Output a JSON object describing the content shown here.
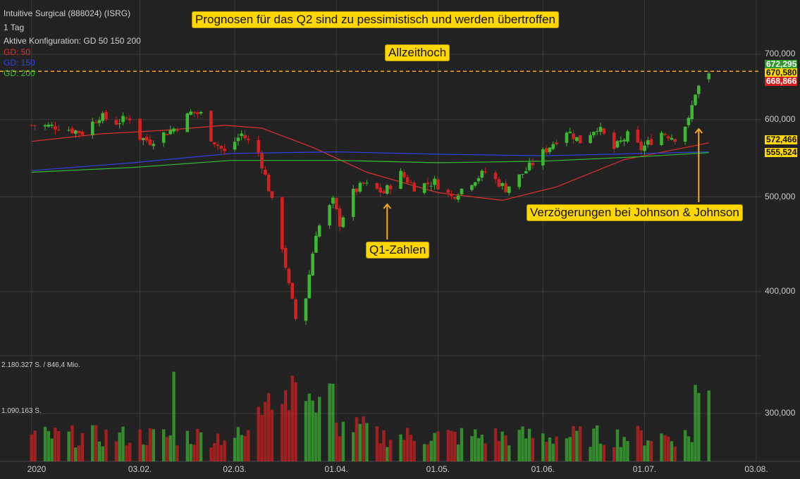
{
  "header": {
    "instrument": "Intuitive Surgical (888024) (ISRG)",
    "interval": "1 Tag",
    "config": "Aktive Konfiguration: GD 50 150 200",
    "legend": [
      {
        "label": "GD: 50",
        "color": "#e03030"
      },
      {
        "label": "GD: 150",
        "color": "#3040e0"
      },
      {
        "label": "GD: 200",
        "color": "#30c030"
      }
    ]
  },
  "annotations": {
    "headline": "Prognosen für das Q2 sind zu pessimistisch und werden übertroffen",
    "ath": "Allzeithoch",
    "q1": "Q1-Zahlen",
    "jnj": "Verzögerungen bei Johnson & Johnson"
  },
  "volume_labels": {
    "max": "2.180.327 S. / 846,4 Mio.",
    "mid": "1.090.163 S."
  },
  "price_badges": [
    {
      "value": "672,295",
      "bg": "#2a9a2a",
      "fg": "#ffffff",
      "level": 672.295
    },
    {
      "value": "670,580",
      "bg": "#ffd700",
      "fg": "#111111",
      "level": 670.58
    },
    {
      "value": "668,866",
      "bg": "#d62020",
      "fg": "#ffffff",
      "level": 668.866
    },
    {
      "value": "572,466",
      "bg": "#ffd700",
      "fg": "#111111",
      "level": 572.466
    },
    {
      "value": "555,524",
      "bg": "#ffd700",
      "fg": "#111111",
      "level": 555.524
    }
  ],
  "colors": {
    "up": "#3cb832",
    "down": "#d42020",
    "ath_line": "#f5a623",
    "arrow": "#f5a623"
  },
  "chart_data": {
    "type": "candlestick",
    "title": "Intuitive Surgical (888024) (ISRG)",
    "y_scale": "log",
    "y_ticks": [
      {
        "value": 700,
        "label": "700,000"
      },
      {
        "value": 600,
        "label": "600,000"
      },
      {
        "value": 500,
        "label": "500,000"
      },
      {
        "value": 400,
        "label": "400,000"
      },
      {
        "value": 300,
        "label": "300,000"
      }
    ],
    "x_ticks": [
      "2020",
      "03.02.",
      "02.03.",
      "01.04.",
      "01.05.",
      "01.06.",
      "01.07.",
      "03.08."
    ],
    "all_time_high": 672.295,
    "anchors": [
      {
        "date": "2020-01-02",
        "close": 592
      },
      {
        "date": "2020-01-10",
        "close": 590
      },
      {
        "date": "2020-01-17",
        "close": 582
      },
      {
        "date": "2020-01-22",
        "close": 605
      },
      {
        "date": "2020-01-27",
        "close": 596
      },
      {
        "date": "2020-01-31",
        "close": 603
      },
      {
        "date": "2020-02-03",
        "close": 575
      },
      {
        "date": "2020-02-06",
        "close": 570
      },
      {
        "date": "2020-02-14",
        "close": 590
      },
      {
        "date": "2020-02-18",
        "close": 610
      },
      {
        "date": "2020-02-21",
        "close": 608
      },
      {
        "date": "2020-02-24",
        "close": 575
      },
      {
        "date": "2020-02-28",
        "close": 555
      },
      {
        "date": "2020-03-04",
        "close": 580
      },
      {
        "date": "2020-03-09",
        "close": 555
      },
      {
        "date": "2020-03-12",
        "close": 510
      },
      {
        "date": "2020-03-16",
        "close": 445
      },
      {
        "date": "2020-03-18",
        "close": 405
      },
      {
        "date": "2020-03-20",
        "close": 375
      },
      {
        "date": "2020-03-23",
        "close": 395
      },
      {
        "date": "2020-03-26",
        "close": 460
      },
      {
        "date": "2020-03-31",
        "close": 495
      },
      {
        "date": "2020-04-02",
        "close": 470
      },
      {
        "date": "2020-04-06",
        "close": 505
      },
      {
        "date": "2020-04-09",
        "close": 515
      },
      {
        "date": "2020-04-15",
        "close": 505
      },
      {
        "date": "2020-04-20",
        "close": 528
      },
      {
        "date": "2020-04-24",
        "close": 512
      },
      {
        "date": "2020-04-30",
        "close": 518
      },
      {
        "date": "2020-05-05",
        "close": 500
      },
      {
        "date": "2020-05-12",
        "close": 522
      },
      {
        "date": "2020-05-15",
        "close": 530
      },
      {
        "date": "2020-05-21",
        "close": 510
      },
      {
        "date": "2020-05-27",
        "close": 532
      },
      {
        "date": "2020-06-01",
        "close": 555
      },
      {
        "date": "2020-06-08",
        "close": 585
      },
      {
        "date": "2020-06-12",
        "close": 570
      },
      {
        "date": "2020-06-17",
        "close": 590
      },
      {
        "date": "2020-06-22",
        "close": 560
      },
      {
        "date": "2020-06-26",
        "close": 578
      },
      {
        "date": "2020-06-30",
        "close": 560
      },
      {
        "date": "2020-07-06",
        "close": 582
      },
      {
        "date": "2020-07-10",
        "close": 575
      },
      {
        "date": "2020-07-14",
        "close": 598
      },
      {
        "date": "2020-07-16",
        "close": 640
      },
      {
        "date": "2020-07-20",
        "close": 672
      }
    ],
    "moving_averages": [
      {
        "name": "GD 50",
        "color": "#e03030",
        "points": [
          {
            "date": "2020-01-02",
            "value": 570
          },
          {
            "date": "2020-01-22",
            "value": 580
          },
          {
            "date": "2020-02-10",
            "value": 585
          },
          {
            "date": "2020-02-28",
            "value": 592
          },
          {
            "date": "2020-03-10",
            "value": 588
          },
          {
            "date": "2020-03-25",
            "value": 562
          },
          {
            "date": "2020-04-10",
            "value": 530
          },
          {
            "date": "2020-05-01",
            "value": 505
          },
          {
            "date": "2020-05-20",
            "value": 496
          },
          {
            "date": "2020-06-05",
            "value": 512
          },
          {
            "date": "2020-06-25",
            "value": 546
          },
          {
            "date": "2020-07-20",
            "value": 568
          }
        ]
      },
      {
        "name": "GD 150",
        "color": "#3040e0",
        "points": [
          {
            "date": "2020-01-02",
            "value": 532
          },
          {
            "date": "2020-02-01",
            "value": 542
          },
          {
            "date": "2020-03-01",
            "value": 554
          },
          {
            "date": "2020-04-01",
            "value": 556
          },
          {
            "date": "2020-05-01",
            "value": 553
          },
          {
            "date": "2020-06-01",
            "value": 551
          },
          {
            "date": "2020-07-01",
            "value": 554
          },
          {
            "date": "2020-07-20",
            "value": 556
          }
        ]
      },
      {
        "name": "GD 200",
        "color": "#30c030",
        "points": [
          {
            "date": "2020-01-02",
            "value": 530
          },
          {
            "date": "2020-02-01",
            "value": 536
          },
          {
            "date": "2020-03-01",
            "value": 545
          },
          {
            "date": "2020-04-01",
            "value": 545
          },
          {
            "date": "2020-05-01",
            "value": 542
          },
          {
            "date": "2020-06-01",
            "value": 544
          },
          {
            "date": "2020-07-01",
            "value": 550
          },
          {
            "date": "2020-07-20",
            "value": 555
          }
        ]
      }
    ],
    "volume_max": 2180327
  }
}
